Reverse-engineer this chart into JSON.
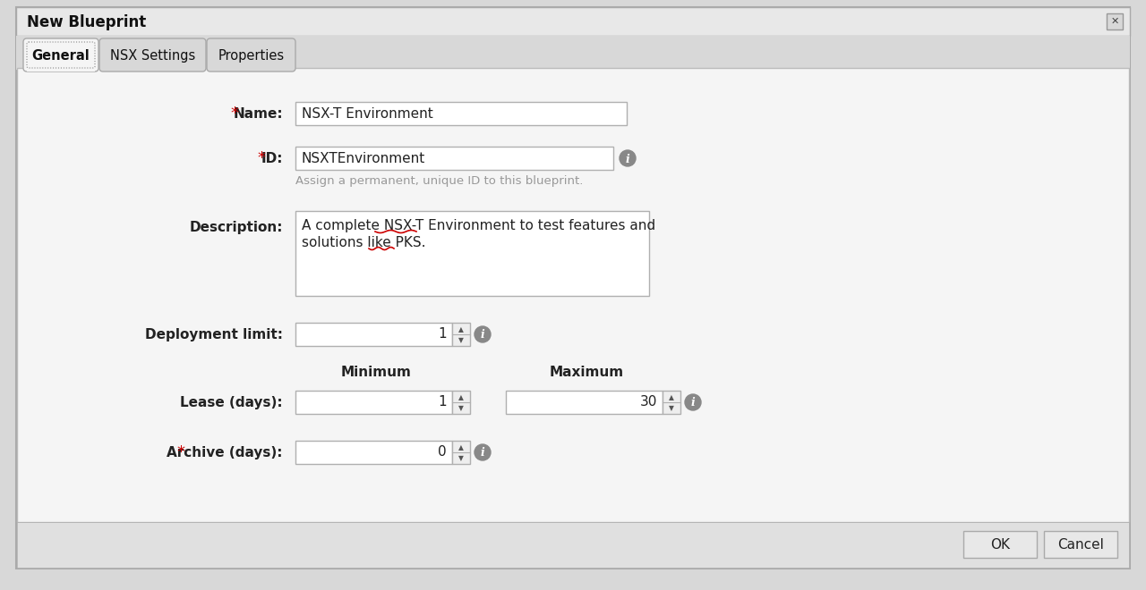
{
  "title": "New Blueprint",
  "outer_bg": "#d8d8d8",
  "dialog_bg": "#efefef",
  "content_bg": "#f5f5f5",
  "field_bg": "#ffffff",
  "border_color": "#b0b0b0",
  "dark_border": "#999999",
  "titlebar_bg": "#e8e8e8",
  "tabs": [
    "General",
    "NSX Settings",
    "Properties"
  ],
  "tab_active_bg": "#f5f5f5",
  "tab_inactive_bg": "#d8d8d8",
  "fields": {
    "name_value": "NSX-T Environment",
    "id_value": "NSXTEnvironment",
    "id_hint": "Assign a permanent, unique ID to this blueprint.",
    "desc_line1": "A complete NSX-T Environment to test features and",
    "desc_line2": "solutions like PKS.",
    "deploy_value": "1",
    "min_label": "Minimum",
    "max_label": "Maximum",
    "lease_min_value": "1",
    "lease_max_value": "30",
    "archive_value": "0"
  },
  "label_color": "#222222",
  "required_color": "#cc0000",
  "hint_color": "#999999",
  "spinner_color": "#666666",
  "info_bg": "#888888",
  "btn_bg": "#e8e8e8",
  "btn_border": "#aaaaaa",
  "bottom_bar_bg": "#e0e0e0"
}
